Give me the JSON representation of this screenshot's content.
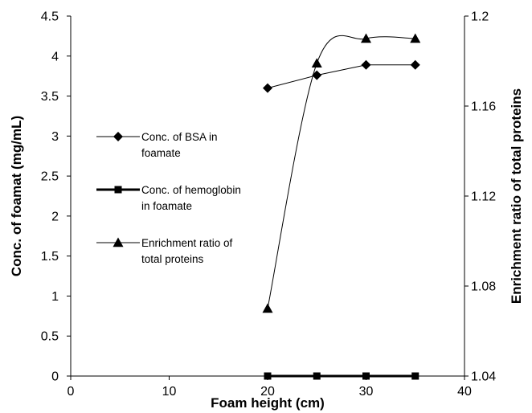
{
  "chart_data": {
    "type": "line",
    "title": "",
    "xlabel": "Foam height (cm)",
    "ylabel_left": "Conc. of foamat (mg/mL)",
    "ylabel_right": "Enrichment ratio of total proteins",
    "xlim": [
      0,
      40
    ],
    "ylim_left": [
      0,
      4.5
    ],
    "ylim_right": [
      1.04,
      1.2
    ],
    "x_ticks": [
      "0",
      "10",
      "20",
      "30",
      "40"
    ],
    "y_left_ticks": [
      "0",
      "0.5",
      "1",
      "1.5",
      "2",
      "2.5",
      "3",
      "3.5",
      "4",
      "4.5"
    ],
    "y_right_ticks": [
      "1.04",
      "1.08",
      "1.12",
      "1.16",
      "1.2"
    ],
    "grid": false,
    "legend_position": "center-left",
    "series": [
      {
        "name": "Conc. of BSA in foamate",
        "axis": "left",
        "marker": "diamond",
        "line_width": 1,
        "x": [
          20,
          25,
          30,
          35
        ],
        "y": [
          3.6,
          3.76,
          3.89,
          3.89
        ]
      },
      {
        "name": "Conc. of hemoglobin in foamate",
        "axis": "left",
        "marker": "square",
        "line_width": 3,
        "x": [
          20,
          25,
          30,
          35
        ],
        "y": [
          0,
          0,
          0,
          0
        ]
      },
      {
        "name": "Enrichment ratio of total proteins",
        "axis": "right",
        "marker": "triangle",
        "line_width": 1,
        "smooth": true,
        "x": [
          20,
          25,
          30,
          35
        ],
        "y": [
          1.07,
          1.179,
          1.19,
          1.19
        ]
      }
    ]
  }
}
